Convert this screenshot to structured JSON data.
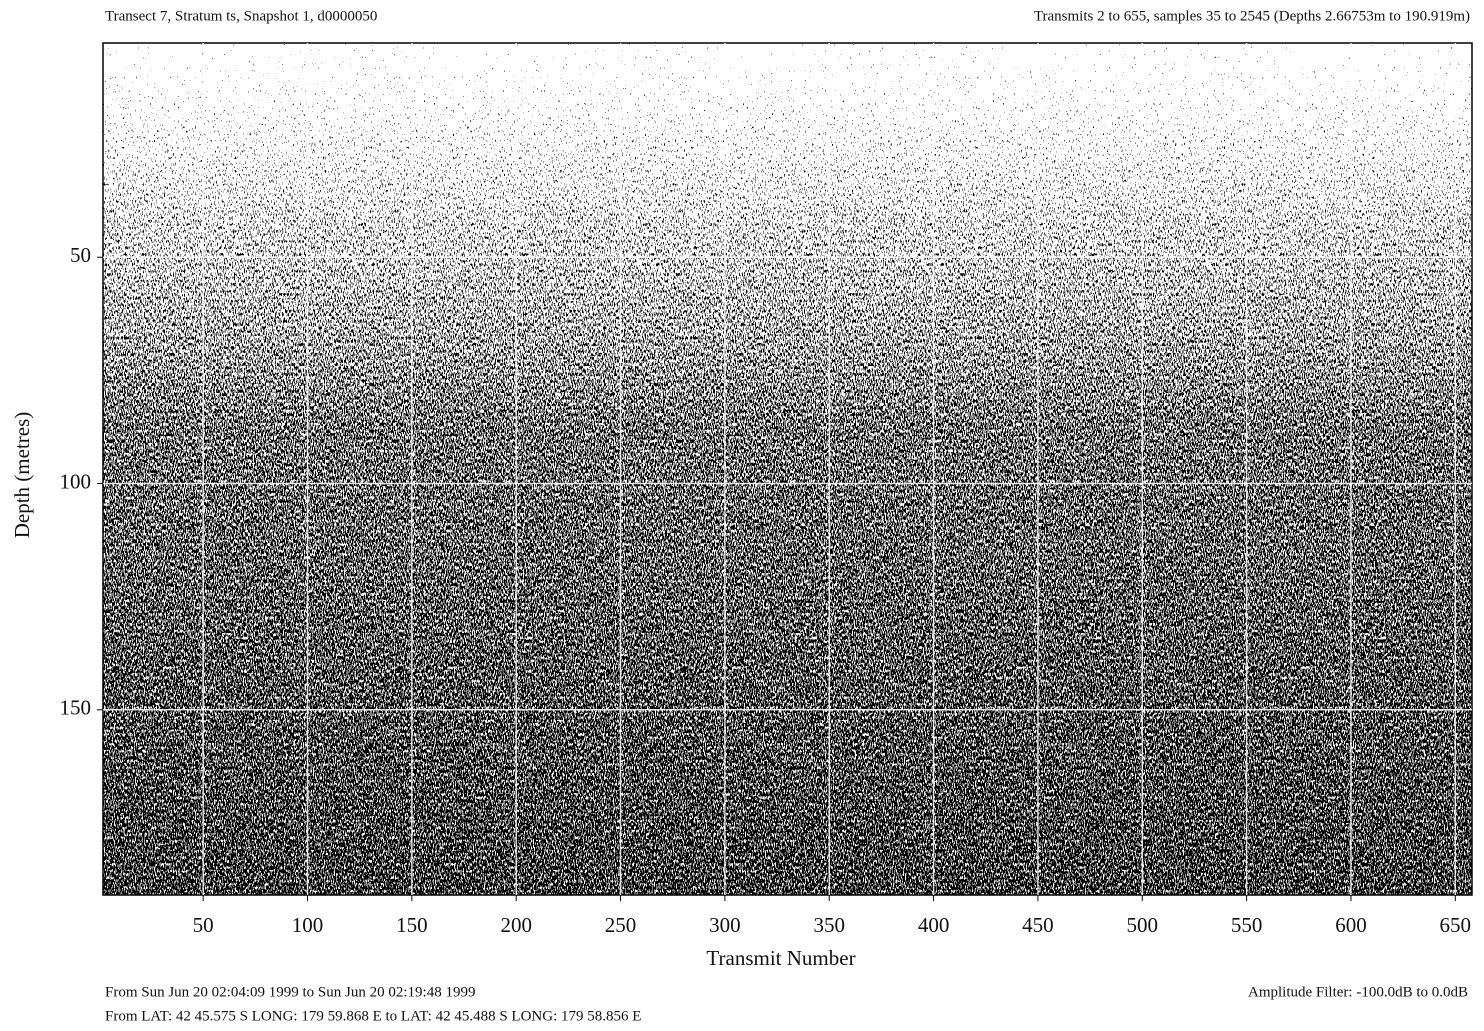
{
  "chart_data": {
    "type": "echogram",
    "title": "Transect 7, Stratum ts, Snapshot 1, d0000050",
    "subtitle": "Transmits 2 to 655, samples 35 to 2545 (Depths 2.66753m to 190.919m)",
    "x_label": "Transmit Number",
    "y_label": "Depth (metres)",
    "xlim": [
      2,
      658
    ],
    "xticks": [
      50,
      100,
      150,
      200,
      250,
      300,
      350,
      400,
      450,
      500,
      550,
      600,
      650
    ],
    "ylim": [
      2.66753,
      190.919
    ],
    "yticks": [
      50,
      100,
      150
    ],
    "y_inverted": true,
    "grid": true,
    "time_range": "From Sun Jun 20 02:04:09 1999 to Sun Jun 20 02:19:48 1999",
    "position_range": "From LAT: 42 45.575 S   LONG: 179 59.868 E to LAT: 42 45.488 S   LONG: 179 58.856 E",
    "amplitude_filter": "Amplitude Filter: -100.0dB to   0.0dB"
  }
}
